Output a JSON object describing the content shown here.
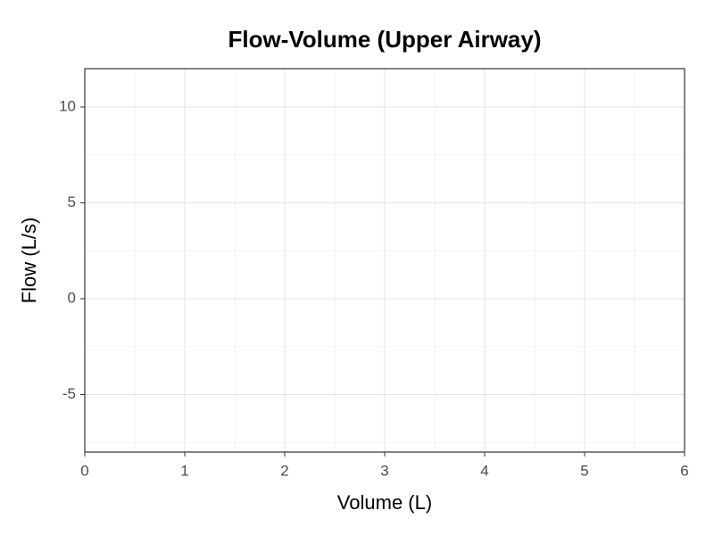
{
  "chart_data": {
    "type": "line",
    "title": "Flow-Volume (Upper Airway)",
    "x_label": "Volume (L)",
    "y_label": "Flow (L/s)",
    "series": [],
    "xlim": [
      0,
      6
    ],
    "xticks": [
      0,
      1,
      2,
      3,
      4,
      5,
      6
    ],
    "ylim": [
      -8,
      12
    ],
    "yticks": [
      -5,
      0,
      5,
      10
    ],
    "grid": true
  }
}
